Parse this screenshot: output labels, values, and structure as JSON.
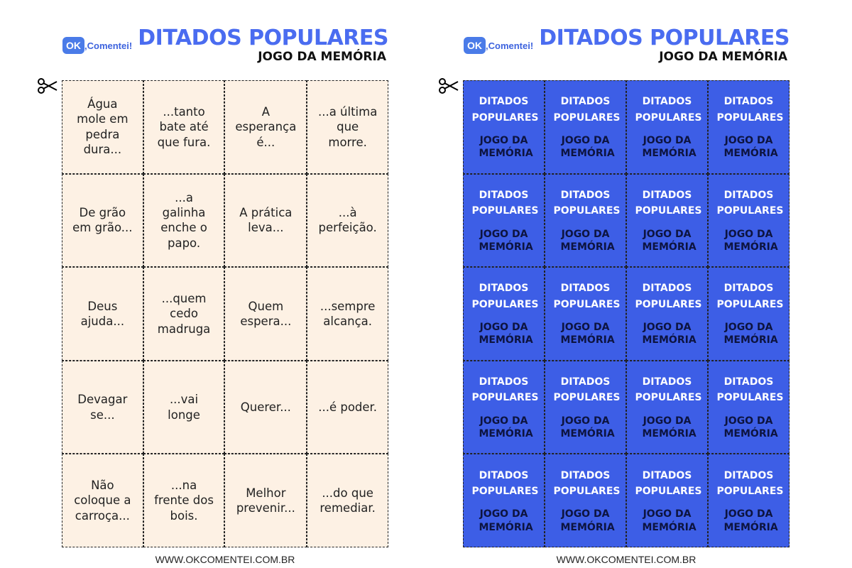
{
  "pages": [
    {
      "logo": {
        "badge": "OK",
        "text": ",Comentei!"
      },
      "title": "DITADOS POPULARES",
      "subtitle": "JOGO DA MEMÓRIA",
      "cards": [
        [
          "Água mole em pedra dura...",
          "...tanto bate até que fura.",
          "A esperança é...",
          "...a última que morre."
        ],
        [
          "De grão em grão...",
          "...a galinha enche o papo.",
          "A prática leva...",
          "...à perfeição."
        ],
        [
          "Deus ajuda...",
          "...quem cedo madruga",
          "Quem espera...",
          "...sempre alcança."
        ],
        [
          "Devagar se...",
          "...vai longe",
          "Querer...",
          "...é poder."
        ],
        [
          "Não coloque a carroça...",
          "...na frente dos bois.",
          "Melhor prevenir...",
          "...do que remediar."
        ]
      ],
      "footer": "WWW.OKCOMENTEI.COM.BR"
    },
    {
      "logo": {
        "badge": "OK",
        "text": ",Comentei!"
      },
      "title": "DITADOS POPULARES",
      "subtitle": "JOGO DA MEMÓRIA",
      "cards": [
        [
          {
            "title": "DITADOS POPULARES",
            "subtitle": "JOGO DA MEMÓRIA"
          },
          {
            "title": "DITADOS POPULARES",
            "subtitle": "JOGO DA MEMÓRIA"
          },
          {
            "title": "DITADOS POPULARES",
            "subtitle": "JOGO DA MEMÓRIA"
          },
          {
            "title": "DITADOS POPULARES",
            "subtitle": "JOGO DA MEMÓRIA"
          }
        ],
        [
          {
            "title": "DITADOS POPULARES",
            "subtitle": "JOGO DA MEMÓRIA"
          },
          {
            "title": "DITADOS POPULARES",
            "subtitle": "JOGO DA MEMÓRIA"
          },
          {
            "title": "DITADOS POPULARES",
            "subtitle": "JOGO DA MEMÓRIA"
          },
          {
            "title": "DITADOS POPULARES",
            "subtitle": "JOGO DA MEMÓRIA"
          }
        ],
        [
          {
            "title": "DITADOS POPULARES",
            "subtitle": "JOGO DA MEMÓRIA"
          },
          {
            "title": "DITADOS POPULARES",
            "subtitle": "JOGO DA MEMÓRIA"
          },
          {
            "title": "DITADOS POPULARES",
            "subtitle": "JOGO DA MEMÓRIA"
          },
          {
            "title": "DITADOS POPULARES",
            "subtitle": "JOGO DA MEMÓRIA"
          }
        ],
        [
          {
            "title": "DITADOS POPULARES",
            "subtitle": "JOGO DA MEMÓRIA"
          },
          {
            "title": "DITADOS POPULARES",
            "subtitle": "JOGO DA MEMÓRIA"
          },
          {
            "title": "DITADOS POPULARES",
            "subtitle": "JOGO DA MEMÓRIA"
          },
          {
            "title": "DITADOS POPULARES",
            "subtitle": "JOGO DA MEMÓRIA"
          }
        ],
        [
          {
            "title": "DITADOS POPULARES",
            "subtitle": "JOGO DA MEMÓRIA"
          },
          {
            "title": "DITADOS POPULARES",
            "subtitle": "JOGO DA MEMÓRIA"
          },
          {
            "title": "DITADOS POPULARES",
            "subtitle": "JOGO DA MEMÓRIA"
          },
          {
            "title": "DITADOS POPULARES",
            "subtitle": "JOGO DA MEMÓRIA"
          }
        ]
      ],
      "footer": "WWW.OKCOMENTEI.COM.BR"
    }
  ]
}
